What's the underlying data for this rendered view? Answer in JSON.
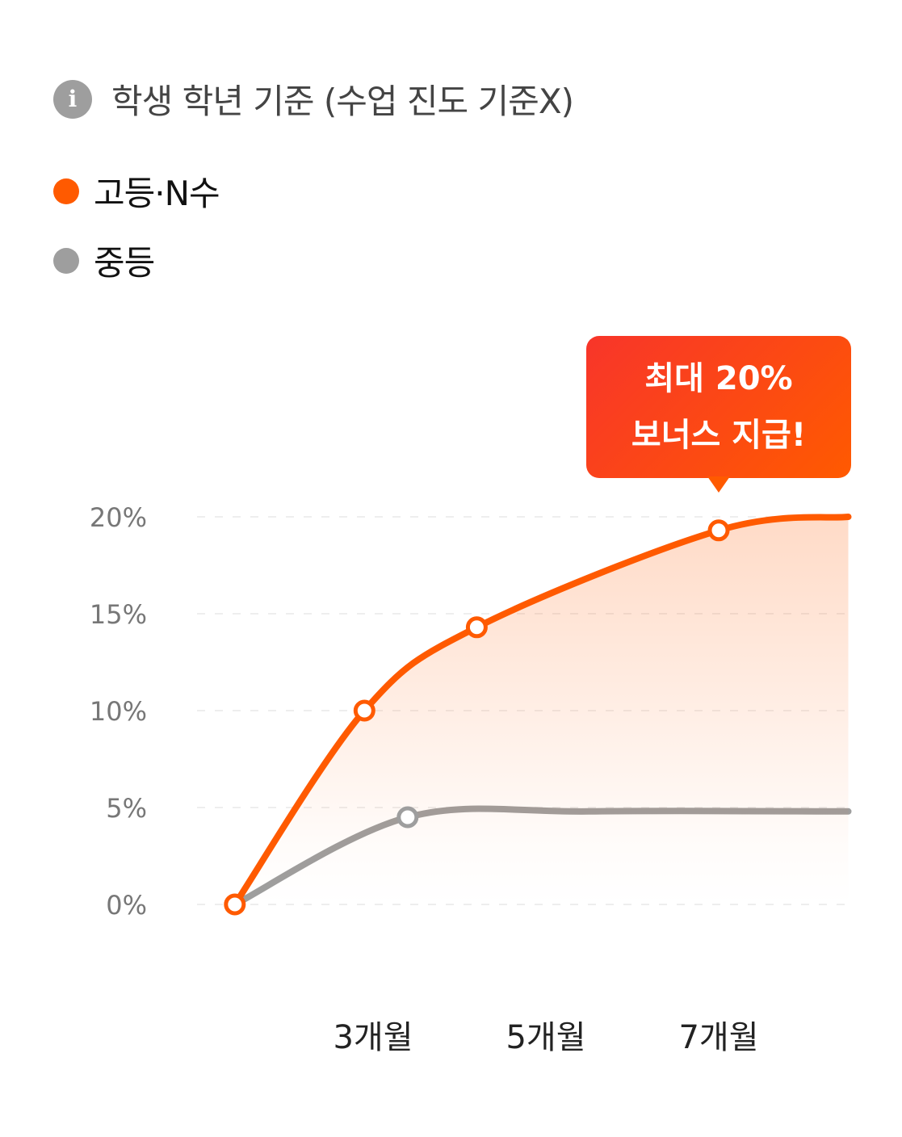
{
  "header": {
    "icon": "info-icon",
    "title": "학생 학년 기준 (수업 진도 기준X)"
  },
  "chart_data": {
    "type": "line",
    "title": "",
    "xlabel": "",
    "ylabel": "",
    "ylim": [
      0,
      20
    ],
    "y_ticks": [
      "0%",
      "5%",
      "10%",
      "15%",
      "20%"
    ],
    "y_tick_values": [
      0,
      5,
      10,
      15,
      20
    ],
    "x_ticks": [
      "3개월",
      "5개월",
      "7개월"
    ],
    "x_tick_values": [
      3,
      5,
      7
    ],
    "grid": "horizontal dashed",
    "legend": "top-left",
    "series": [
      {
        "name": "고등·N수",
        "color": "#ff5a00",
        "area_fill": true,
        "x": [
          1.4,
          2.9,
          4.2,
          7.0,
          8.5
        ],
        "y": [
          0,
          10,
          14.3,
          19.3,
          20
        ],
        "markers": [
          true,
          true,
          true,
          true,
          false
        ]
      },
      {
        "name": "중등",
        "color": "#9e9e9e",
        "area_fill": false,
        "x": [
          1.4,
          3.4,
          5.5,
          8.5
        ],
        "y": [
          0,
          4.5,
          4.8,
          4.8
        ],
        "markers": [
          false,
          true,
          false,
          false
        ]
      }
    ],
    "annotation": {
      "lines": [
        "최대 20%",
        "보너스 지급!"
      ],
      "x": 7.0,
      "y": 19.3
    }
  }
}
